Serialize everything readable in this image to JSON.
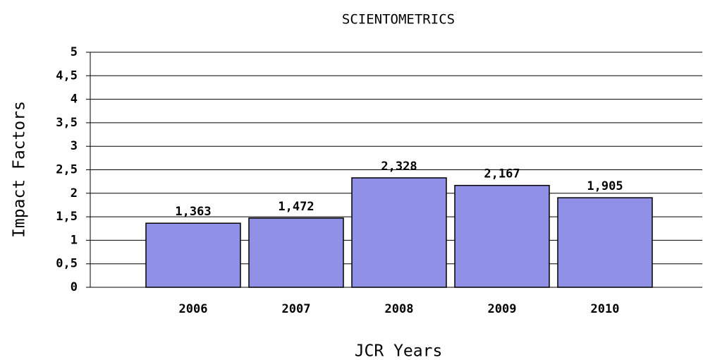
{
  "chart_data": {
    "type": "bar",
    "title": "SCIENTOMETRICS",
    "x_label": "JCR Years",
    "y_label": "Impact Factors",
    "categories": [
      "2006",
      "2007",
      "2008",
      "2009",
      "2010"
    ],
    "values": [
      1.363,
      1.472,
      2.328,
      2.167,
      1.905
    ],
    "value_labels": [
      "1,363",
      "1,472",
      "2,328",
      "2,167",
      "1,905"
    ],
    "color": "#9090e6",
    "ylim": [
      0,
      5
    ],
    "yticks": [
      0,
      {
        "value": 0.5,
        "label": "0,5"
      },
      1,
      {
        "value": 1.5,
        "label": "1,5"
      },
      2,
      {
        "value": 2.5,
        "label": "2,5"
      },
      3,
      {
        "value": 3.5,
        "label": "3,5"
      },
      4,
      {
        "value": 4.5,
        "label": "4,5"
      },
      5
    ],
    "grid": true
  }
}
